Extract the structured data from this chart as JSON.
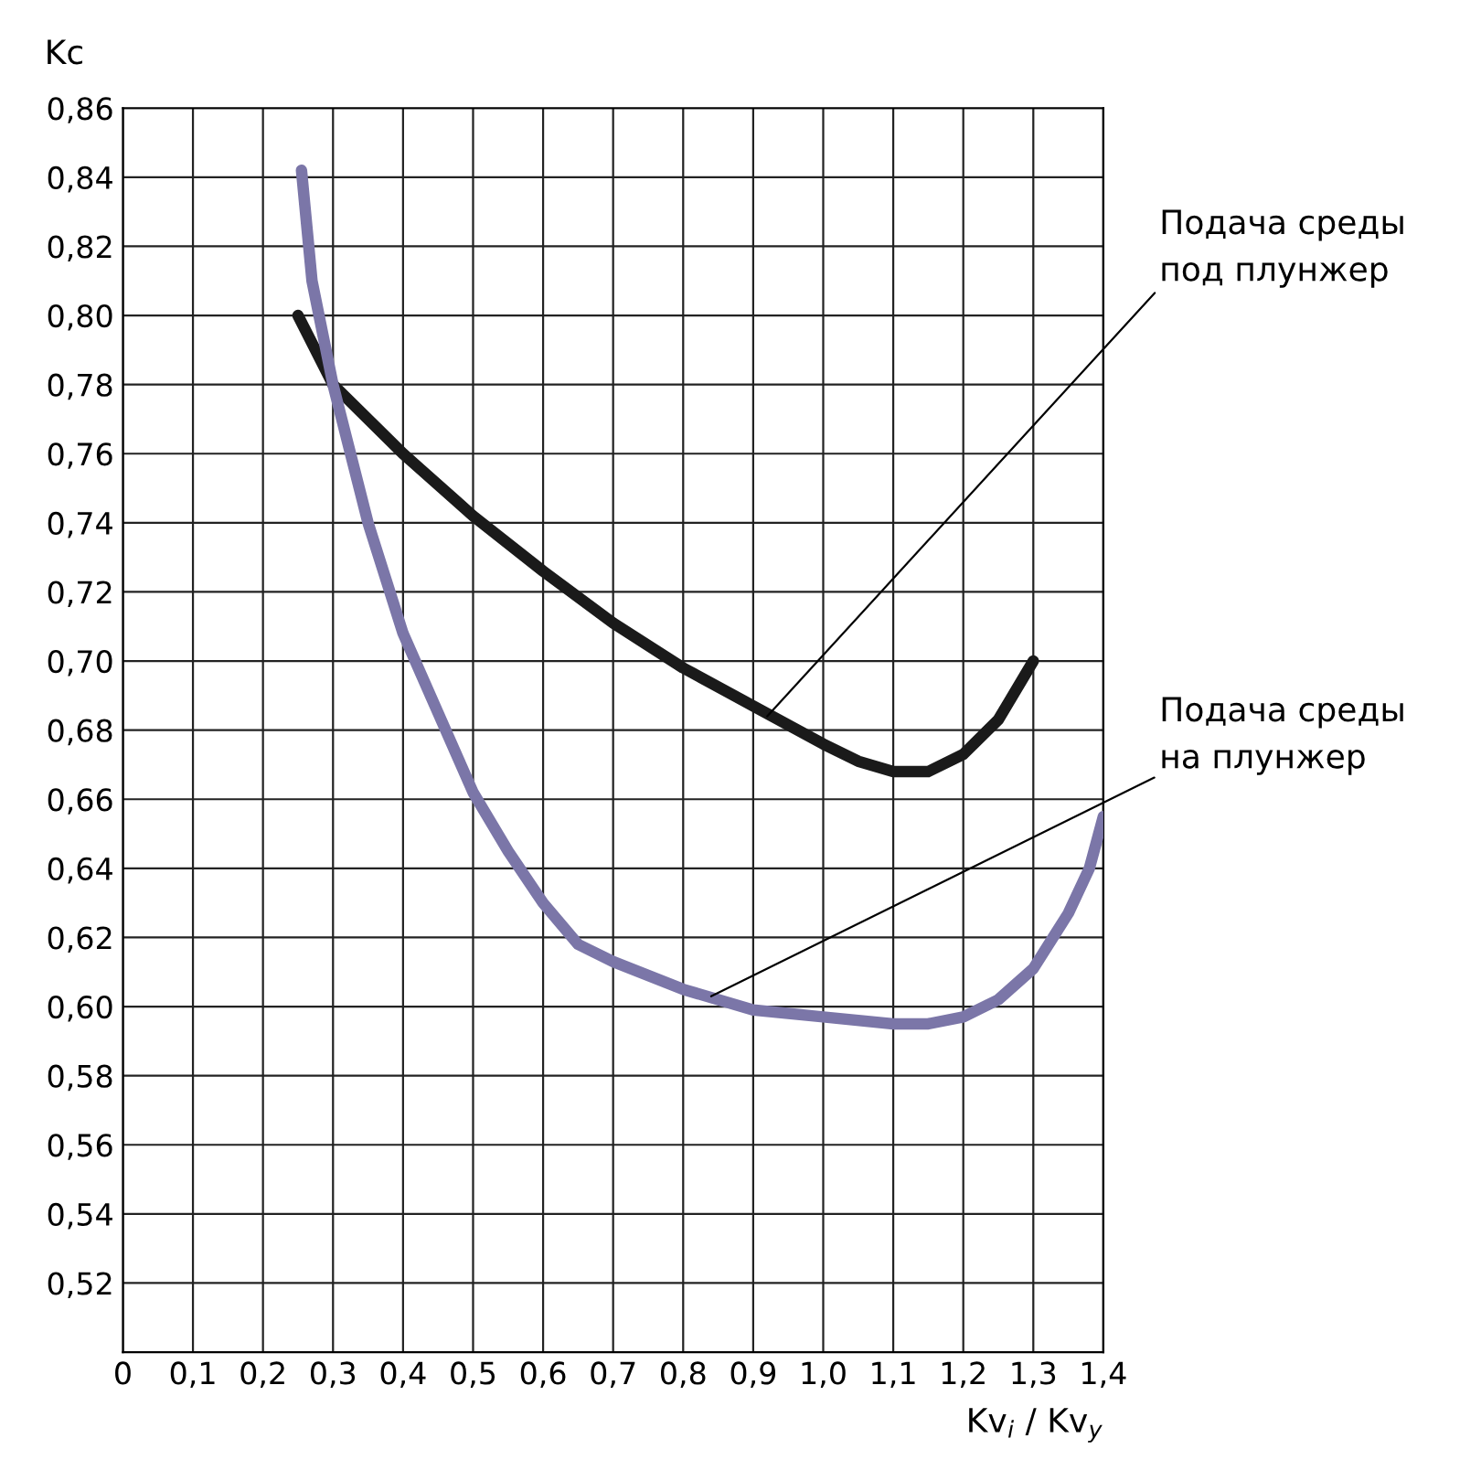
{
  "chart_data": {
    "type": "line",
    "xlabel": "Kv$_{i}$ / Kv$_{y}$",
    "ylabel": "Kc",
    "xlim": [
      0,
      1.4
    ],
    "ylim": [
      0.5,
      0.86
    ],
    "xticks": [
      0,
      {
        "value": 0.1,
        "label": "0,1"
      },
      {
        "value": 0.2,
        "label": "0,2"
      },
      {
        "value": 0.3,
        "label": "0,3"
      },
      {
        "value": 0.4,
        "label": "0,4"
      },
      {
        "value": 0.5,
        "label": "0,5"
      },
      {
        "value": 0.6,
        "label": "0,6"
      },
      {
        "value": 0.7,
        "label": "0,7"
      },
      {
        "value": 0.8,
        "label": "0,8"
      },
      {
        "value": 0.9,
        "label": "0,9"
      },
      {
        "value": 1.0,
        "label": "1,0"
      },
      {
        "value": 1.1,
        "label": "1,1"
      },
      {
        "value": 1.2,
        "label": "1,2"
      },
      {
        "value": 1.3,
        "label": "1,3"
      },
      {
        "value": 1.4,
        "label": "1,4"
      }
    ],
    "yticks": [
      {
        "value": 0.5,
        "label": null
      },
      {
        "value": 0.52,
        "label": "0,52"
      },
      {
        "value": 0.54,
        "label": "0,54"
      },
      {
        "value": 0.56,
        "label": "0,56"
      },
      {
        "value": 0.58,
        "label": "0,58"
      },
      {
        "value": 0.6,
        "label": "0,60"
      },
      {
        "value": 0.62,
        "label": "0,62"
      },
      {
        "value": 0.64,
        "label": "0,64"
      },
      {
        "value": 0.66,
        "label": "0,66"
      },
      {
        "value": 0.68,
        "label": "0,68"
      },
      {
        "value": 0.7,
        "label": "0,70"
      },
      {
        "value": 0.72,
        "label": "0,72"
      },
      {
        "value": 0.74,
        "label": "0,74"
      },
      {
        "value": 0.76,
        "label": "0,76"
      },
      {
        "value": 0.78,
        "label": "0,78"
      },
      {
        "value": 0.8,
        "label": "0,80"
      },
      {
        "value": 0.82,
        "label": "0,82"
      },
      {
        "value": 0.84,
        "label": "0,84"
      },
      {
        "value": 0.86,
        "label": "0,86"
      }
    ],
    "grid": true,
    "marker": "none",
    "line_style": "solid",
    "series": [
      {
        "color": "#1a1a1a",
        "x": [
          0.25,
          0.3,
          0.4,
          0.5,
          0.6,
          0.7,
          0.8,
          0.9,
          1.0,
          1.05,
          1.1,
          1.15,
          1.2,
          1.25,
          1.3
        ],
        "values": [
          0.8,
          0.78,
          0.76,
          0.742,
          0.726,
          0.711,
          0.698,
          0.687,
          0.676,
          0.671,
          0.668,
          0.668,
          0.673,
          0.683,
          0.7
        ]
      },
      {
        "color": "#7b76a8",
        "x": [
          0.255,
          0.27,
          0.3,
          0.35,
          0.4,
          0.45,
          0.5,
          0.55,
          0.6,
          0.65,
          0.7,
          0.8,
          0.9,
          1.0,
          1.1,
          1.15,
          1.2,
          1.25,
          1.3,
          1.35,
          1.38,
          1.4
        ],
        "values": [
          0.842,
          0.81,
          0.78,
          0.74,
          0.708,
          0.685,
          0.662,
          0.645,
          0.63,
          0.618,
          0.613,
          0.605,
          0.599,
          0.597,
          0.595,
          0.595,
          0.597,
          0.602,
          0.611,
          0.627,
          0.64,
          0.655
        ]
      }
    ],
    "annotations": [
      {
        "text": "Подача среды\nпод плунжер",
        "x": 0.92,
        "y": 0.684
      },
      {
        "text": "Подача среды\nна плунжер",
        "x": 0.84,
        "y": 0.603
      }
    ],
    "legend": false
  }
}
